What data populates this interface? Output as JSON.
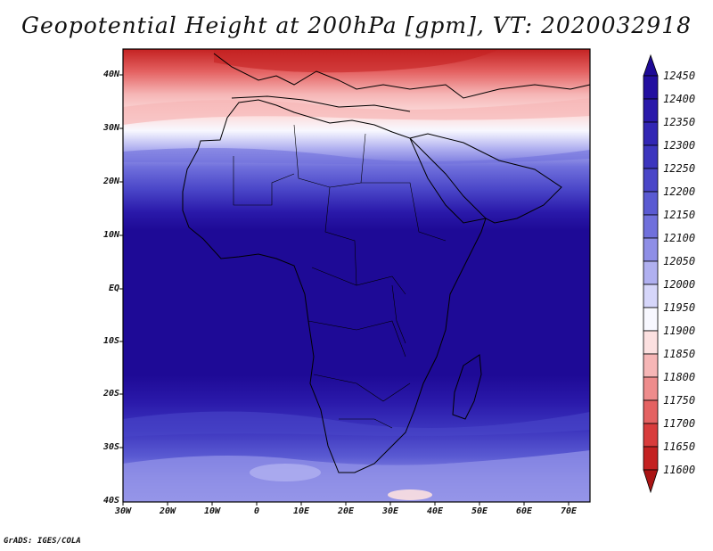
{
  "title": "Geopotential Height at 200hPa [gpm], VT: 2020032918",
  "credit": "GrADS: IGES/COLA",
  "lat_labels": [
    "40N",
    "30N",
    "20N",
    "10N",
    "EQ",
    "10S",
    "20S",
    "30S",
    "40S"
  ],
  "lon_labels": [
    "30W",
    "20W",
    "10W",
    "0",
    "10E",
    "20E",
    "30E",
    "40E",
    "50E",
    "60E",
    "70E"
  ],
  "colorbar": {
    "labels": [
      "12450",
      "12400",
      "12350",
      "12300",
      "12250",
      "12200",
      "12150",
      "12100",
      "12050",
      "12000",
      "11950",
      "11900",
      "11850",
      "11800",
      "11750",
      "11700",
      "11650",
      "11600"
    ],
    "colors": [
      "#1e0a96",
      "#230fa0",
      "#2a19aa",
      "#3226b4",
      "#3c35be",
      "#4a46c8",
      "#5a5ad2",
      "#7070dc",
      "#8e8ee6",
      "#b0b0f0",
      "#d6d6fa",
      "#f8f8ff",
      "#fce0e0",
      "#f6b6b6",
      "#ee8c8c",
      "#e46262",
      "#d83c3c",
      "#c42222",
      "#aa1414"
    ]
  }
}
